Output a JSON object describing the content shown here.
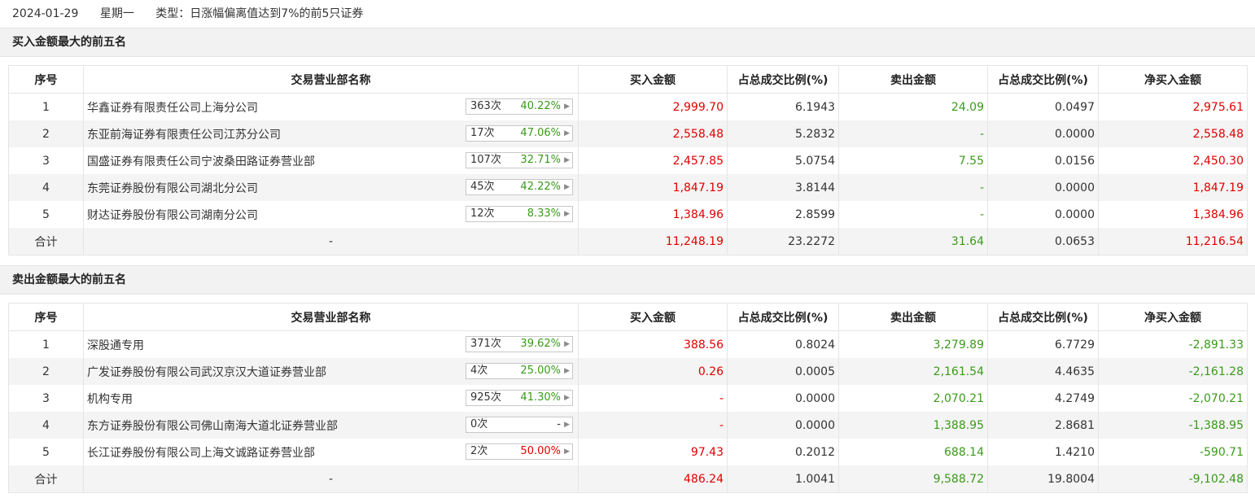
{
  "header": {
    "date": "2024-01-29",
    "weekday": "星期一",
    "type_text": "类型：日涨幅偏离值达到7%的前5只证券"
  },
  "columns": [
    "序号",
    "交易营业部名称",
    "买入金额",
    "占总成交比例(%)",
    "卖出金额",
    "占总成交比例(%)",
    "净买入金额"
  ],
  "buy_section": {
    "title": "买入金额最大的前五名",
    "rows": [
      {
        "idx": "1",
        "name": "华鑫证券有限责任公司上海分公司",
        "count": "363次",
        "pct": "40.22%",
        "pct_color": "green",
        "buy": "2,999.70",
        "buy_ratio": "6.1943",
        "sell": "24.09",
        "sell_ratio": "0.0497",
        "net": "2,975.61",
        "net_color": "red"
      },
      {
        "idx": "2",
        "name": "东亚前海证券有限责任公司江苏分公司",
        "count": "17次",
        "pct": "47.06%",
        "pct_color": "green",
        "buy": "2,558.48",
        "buy_ratio": "5.2832",
        "sell": "-",
        "sell_ratio": "0.0000",
        "net": "2,558.48",
        "net_color": "red"
      },
      {
        "idx": "3",
        "name": "国盛证券有限责任公司宁波桑田路证券营业部",
        "count": "107次",
        "pct": "32.71%",
        "pct_color": "green",
        "buy": "2,457.85",
        "buy_ratio": "5.0754",
        "sell": "7.55",
        "sell_ratio": "0.0156",
        "net": "2,450.30",
        "net_color": "red"
      },
      {
        "idx": "4",
        "name": "东莞证券股份有限公司湖北分公司",
        "count": "45次",
        "pct": "42.22%",
        "pct_color": "green",
        "buy": "1,847.19",
        "buy_ratio": "3.8144",
        "sell": "-",
        "sell_ratio": "0.0000",
        "net": "1,847.19",
        "net_color": "red"
      },
      {
        "idx": "5",
        "name": "财达证券股份有限公司湖南分公司",
        "count": "12次",
        "pct": "8.33%",
        "pct_color": "green",
        "buy": "1,384.96",
        "buy_ratio": "2.8599",
        "sell": "-",
        "sell_ratio": "0.0000",
        "net": "1,384.96",
        "net_color": "red"
      }
    ],
    "total": {
      "label": "合计",
      "name": "-",
      "buy": "11,248.19",
      "buy_ratio": "23.2272",
      "sell": "31.64",
      "sell_ratio": "0.0653",
      "net": "11,216.54",
      "net_color": "red"
    }
  },
  "sell_section": {
    "title": "卖出金额最大的前五名",
    "rows": [
      {
        "idx": "1",
        "name": "深股通专用",
        "count": "371次",
        "pct": "39.62%",
        "pct_color": "green",
        "buy": "388.56",
        "buy_ratio": "0.8024",
        "sell": "3,279.89",
        "sell_ratio": "6.7729",
        "net": "-2,891.33",
        "net_color": "green"
      },
      {
        "idx": "2",
        "name": "广发证券股份有限公司武汉京汉大道证券营业部",
        "count": "4次",
        "pct": "25.00%",
        "pct_color": "green",
        "buy": "0.26",
        "buy_ratio": "0.0005",
        "sell": "2,161.54",
        "sell_ratio": "4.4635",
        "net": "-2,161.28",
        "net_color": "green"
      },
      {
        "idx": "3",
        "name": "机构专用",
        "count": "925次",
        "pct": "41.30%",
        "pct_color": "green",
        "buy": "-",
        "buy_ratio": "0.0000",
        "sell": "2,070.21",
        "sell_ratio": "4.2749",
        "net": "-2,070.21",
        "net_color": "green"
      },
      {
        "idx": "4",
        "name": "东方证券股份有限公司佛山南海大道北证券营业部",
        "count": "0次",
        "pct": "-",
        "pct_color": "grey",
        "buy": "-",
        "buy_ratio": "0.0000",
        "sell": "1,388.95",
        "sell_ratio": "2.8681",
        "net": "-1,388.95",
        "net_color": "green"
      },
      {
        "idx": "5",
        "name": "长江证券股份有限公司上海文诚路证券营业部",
        "count": "2次",
        "pct": "50.00%",
        "pct_color": "red",
        "buy": "97.43",
        "buy_ratio": "0.2012",
        "sell": "688.14",
        "sell_ratio": "1.4210",
        "net": "-590.71",
        "net_color": "green"
      }
    ],
    "total": {
      "label": "合计",
      "name": "-",
      "buy": "486.24",
      "buy_ratio": "1.0041",
      "sell": "9,588.72",
      "sell_ratio": "19.8004",
      "net": "-9,102.48",
      "net_color": "green"
    }
  }
}
